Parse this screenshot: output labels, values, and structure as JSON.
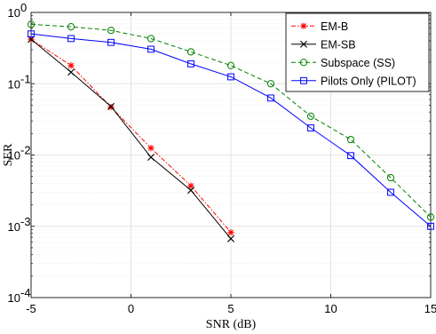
{
  "chart_data": {
    "type": "line",
    "xlabel": "SNR (dB)",
    "ylabel": "SER",
    "xlim": [
      -5,
      15
    ],
    "ylim": [
      0.0001,
      1
    ],
    "yscale": "log",
    "x_ticks": [
      -5,
      0,
      5,
      10,
      15
    ],
    "x_tick_labels": [
      "-5",
      "0",
      "5",
      "10",
      "15"
    ],
    "y_ticks": [
      0.0001,
      0.001,
      0.01,
      0.1,
      1
    ],
    "y_tick_labels": [
      {
        "base": "10",
        "exp": "-4"
      },
      {
        "base": "10",
        "exp": "-3"
      },
      {
        "base": "10",
        "exp": "-2"
      },
      {
        "base": "10",
        "exp": "-1"
      },
      {
        "base": "10",
        "exp": "0"
      }
    ],
    "grid": true,
    "legend_position": "top-right",
    "series": [
      {
        "name": "EM-B",
        "color": "#ff0000",
        "line_style": "dashdot",
        "marker": "asterisk",
        "x": [
          -5,
          -3,
          -1,
          1,
          3,
          5
        ],
        "y": [
          0.42,
          0.18,
          0.047,
          0.0125,
          0.0037,
          0.00082
        ]
      },
      {
        "name": "EM-SB",
        "color": "#000000",
        "line_style": "solid",
        "marker": "x",
        "x": [
          -5,
          -3,
          -1,
          1,
          3,
          5
        ],
        "y": [
          0.42,
          0.145,
          0.048,
          0.0093,
          0.0032,
          0.00067
        ]
      },
      {
        "name": "Subspace (SS)",
        "color": "#008000",
        "line_style": "dashed",
        "marker": "circle",
        "x": [
          -5,
          -3,
          -1,
          1,
          3,
          5,
          7,
          9,
          11,
          13,
          15
        ],
        "y": [
          0.68,
          0.63,
          0.56,
          0.43,
          0.28,
          0.18,
          0.1,
          0.035,
          0.0165,
          0.0048,
          0.00135
        ]
      },
      {
        "name": "Pilots Only (PILOT)",
        "color": "#0000ff",
        "line_style": "solid",
        "marker": "square",
        "x": [
          -5,
          -3,
          -1,
          1,
          3,
          5,
          7,
          9,
          11,
          13,
          15
        ],
        "y": [
          0.5,
          0.43,
          0.38,
          0.305,
          0.19,
          0.125,
          0.063,
          0.024,
          0.0098,
          0.003,
          0.001
        ]
      }
    ]
  }
}
